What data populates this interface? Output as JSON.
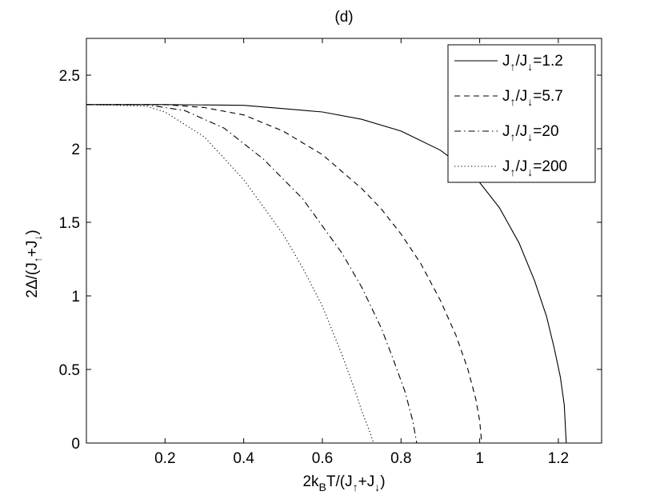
{
  "chart_data": {
    "type": "line",
    "title": "(d)",
    "xlabel": {
      "pre": "2k",
      "sub1": "B",
      "mid": "T/(J",
      "sub2": "↑",
      "plus": "+J",
      "sub3": "↓",
      "post": ")"
    },
    "ylabel": {
      "pre": "2Δ/(J",
      "sub1": "↑",
      "plus": "+J",
      "sub2": "↓",
      "post": ")"
    },
    "xlim": [
      0,
      1.31
    ],
    "ylim": [
      0,
      2.75
    ],
    "xticks": [
      0.2,
      0.4,
      0.6,
      0.8,
      1,
      1.2
    ],
    "xtick_labels": [
      "0.2",
      "0.4",
      "0.6",
      "0.8",
      "1",
      "1.2"
    ],
    "yticks": [
      0,
      0.5,
      1,
      1.5,
      2,
      2.5
    ],
    "ytick_labels": [
      "0",
      "0.5",
      "1",
      "1.5",
      "2",
      "2.5"
    ],
    "grid": false,
    "legend_position": "top-right",
    "series": [
      {
        "legend": {
          "a": "J",
          "sa": "↑",
          "b": "/J",
          "sb": "↓",
          "c": "=1.2"
        },
        "style": "solid",
        "x": [
          0.0,
          0.2,
          0.4,
          0.6,
          0.7,
          0.8,
          0.9,
          0.95,
          1.0,
          1.05,
          1.1,
          1.14,
          1.17,
          1.19,
          1.205,
          1.215,
          1.22
        ],
        "y": [
          2.3,
          2.3,
          2.295,
          2.25,
          2.2,
          2.12,
          1.99,
          1.89,
          1.77,
          1.6,
          1.36,
          1.1,
          0.86,
          0.64,
          0.45,
          0.26,
          0.0
        ]
      },
      {
        "legend": {
          "a": "J",
          "sa": "↑",
          "b": "/J",
          "sb": "↓",
          "c": "=5.7"
        },
        "style": "dashed",
        "x": [
          0.0,
          0.2,
          0.3,
          0.4,
          0.5,
          0.6,
          0.7,
          0.75,
          0.8,
          0.85,
          0.9,
          0.94,
          0.97,
          0.99,
          1.0,
          1.005
        ],
        "y": [
          2.3,
          2.3,
          2.28,
          2.23,
          2.12,
          1.96,
          1.73,
          1.59,
          1.42,
          1.22,
          0.97,
          0.73,
          0.5,
          0.3,
          0.15,
          0.0
        ]
      },
      {
        "legend": {
          "a": "J",
          "sa": "↑",
          "b": "/J",
          "sb": "↓",
          "c": "=20"
        },
        "style": "dashdot",
        "x": [
          0.0,
          0.15,
          0.25,
          0.35,
          0.45,
          0.55,
          0.65,
          0.7,
          0.75,
          0.78,
          0.81,
          0.83,
          0.84
        ],
        "y": [
          2.3,
          2.3,
          2.26,
          2.14,
          1.93,
          1.66,
          1.29,
          1.06,
          0.78,
          0.57,
          0.35,
          0.15,
          0.0
        ]
      },
      {
        "legend": {
          "a": "J",
          "sa": "↑",
          "b": "/J",
          "sb": "↓",
          "c": "=200"
        },
        "style": "dotted",
        "x": [
          0.0,
          0.15,
          0.2,
          0.3,
          0.4,
          0.5,
          0.55,
          0.6,
          0.65,
          0.68,
          0.7,
          0.72,
          0.73
        ],
        "y": [
          2.3,
          2.29,
          2.25,
          2.08,
          1.79,
          1.42,
          1.19,
          0.93,
          0.6,
          0.38,
          0.22,
          0.08,
          0.0
        ]
      }
    ]
  }
}
